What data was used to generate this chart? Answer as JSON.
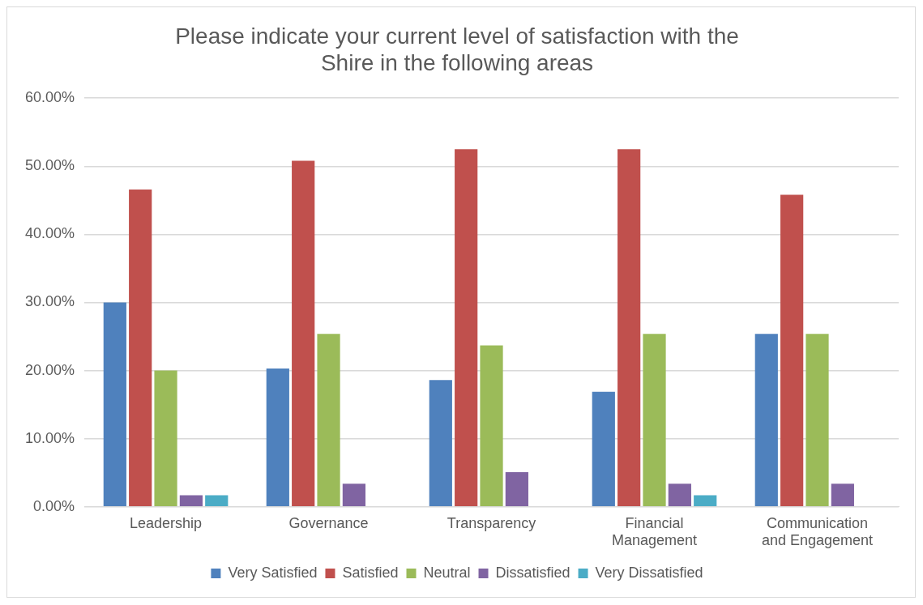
{
  "chart_data": {
    "type": "bar",
    "title": "Please indicate your current level of satisfaction with the Shire in the following areas",
    "categories": [
      "Leadership",
      "Governance",
      "Transparency",
      "Financial Management",
      "Communication and Engagement"
    ],
    "series": [
      {
        "name": "Very Satisfied",
        "color": "#4f81bd",
        "values": [
          30.0,
          20.3,
          18.6,
          16.9,
          25.4
        ]
      },
      {
        "name": "Satisfied",
        "color": "#c0504d",
        "values": [
          46.6,
          50.8,
          52.5,
          52.5,
          45.8
        ]
      },
      {
        "name": "Neutral",
        "color": "#9bbb59",
        "values": [
          20.0,
          25.4,
          23.7,
          25.4,
          25.4
        ]
      },
      {
        "name": "Dissatisfied",
        "color": "#8064a2",
        "values": [
          1.7,
          3.4,
          5.1,
          3.4,
          3.4
        ]
      },
      {
        "name": "Very Dissatisfied",
        "color": "#4bacc6",
        "values": [
          1.7,
          0,
          0,
          1.7,
          0
        ]
      }
    ],
    "ylim": [
      0,
      60
    ],
    "yticks": [
      {
        "value": 0,
        "label": "0.00%"
      },
      {
        "value": 10,
        "label": "10.00%"
      },
      {
        "value": 20,
        "label": "20.00%"
      },
      {
        "value": 30,
        "label": "30.00%"
      },
      {
        "value": 40,
        "label": "40.00%"
      },
      {
        "value": 50,
        "label": "50.00%"
      },
      {
        "value": 60,
        "label": "60.00%"
      }
    ],
    "grid": "y",
    "legend": "bottom"
  }
}
